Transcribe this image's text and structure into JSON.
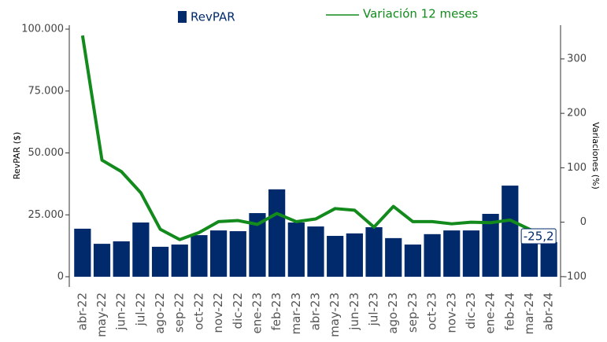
{
  "chart_data": {
    "type": "bar-line",
    "categories": [
      "abr-22",
      "may-22",
      "jun-22",
      "jul-22",
      "ago-22",
      "sep-22",
      "oct-22",
      "nov-22",
      "dic-22",
      "ene-23",
      "feb-23",
      "mar-23",
      "abr-23",
      "may-23",
      "jun-23",
      "jul-23",
      "ago-23",
      "sep-23",
      "oct-23",
      "nov-23",
      "dic-23",
      "ene-24",
      "feb-24",
      "mar-24",
      "abr-24"
    ],
    "series": [
      {
        "name": "RevPAR",
        "type": "bar",
        "color": "#012a6c",
        "axis": "y",
        "values": [
          19400,
          13300,
          14300,
          21900,
          12100,
          13000,
          16800,
          18700,
          18400,
          25700,
          35300,
          21900,
          20300,
          16500,
          17500,
          20000,
          15600,
          13000,
          17200,
          18700,
          18700,
          25400,
          36800,
          17800,
          14000
        ]
      },
      {
        "name": "Variación 12 meses",
        "type": "line",
        "color": "#128a1c",
        "axis": "y2",
        "values": [
          343,
          114,
          93,
          54,
          -13,
          -32,
          -19,
          1,
          3,
          -4,
          16,
          1,
          6,
          25,
          22,
          -9,
          29,
          1,
          1,
          -3,
          0,
          -1,
          4,
          -13,
          -25.2
        ],
        "value_labels": [
          null,
          null,
          null,
          null,
          null,
          null,
          null,
          null,
          null,
          null,
          null,
          null,
          null,
          null,
          null,
          null,
          null,
          null,
          null,
          null,
          null,
          null,
          null,
          null,
          "-25,2"
        ]
      }
    ],
    "ylabel": "RevPAR ($)",
    "y2label": "Variaciones (%)",
    "ylim": [
      -4130,
      101600
    ],
    "yticks": [
      0,
      {
        "value": 25000,
        "label": "25.000"
      },
      {
        "value": 50000,
        "label": "50.000"
      },
      {
        "value": 75000,
        "label": "75.000"
      },
      {
        "value": 100000,
        "label": "100.000"
      }
    ],
    "y2lim": [
      -119,
      362
    ],
    "y2ticks": [
      -100,
      0,
      100,
      200,
      300
    ],
    "grid": false
  }
}
